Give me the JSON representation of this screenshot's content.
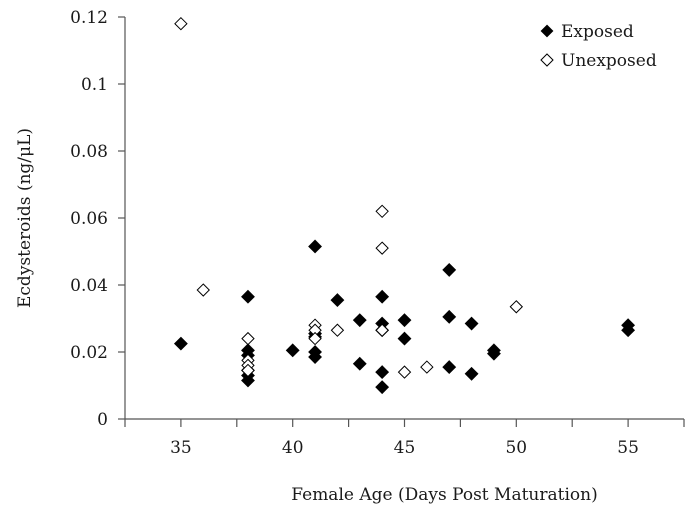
{
  "chart_data": {
    "type": "scatter",
    "title": "",
    "xlabel": "Female Age (Days Post Maturation)",
    "ylabel": "Ecdysteroids (ng/μL)",
    "xlim": [
      32.5,
      57.5
    ],
    "ylim": [
      0,
      0.12
    ],
    "xticks": [
      35,
      40,
      45,
      50,
      55
    ],
    "xtick_labels": [
      "35",
      "40",
      "45",
      "50",
      "55"
    ],
    "yticks": [
      0,
      0.02,
      0.04,
      0.06,
      0.08,
      0.1,
      0.12
    ],
    "ytick_labels": [
      "0",
      "0.02",
      "0.04",
      "0.06",
      "0.08",
      "0.1",
      "0.12"
    ],
    "grid": false,
    "legend_position": "top-right",
    "series": [
      {
        "name": "Exposed",
        "marker": "filled-diamond",
        "color": "#000000",
        "points": [
          [
            35,
            0.0225
          ],
          [
            38,
            0.0365
          ],
          [
            38,
            0.0205
          ],
          [
            38,
            0.019
          ],
          [
            38,
            0.0145
          ],
          [
            38,
            0.013
          ],
          [
            38,
            0.0115
          ],
          [
            40,
            0.0205
          ],
          [
            41,
            0.0515
          ],
          [
            41,
            0.0255
          ],
          [
            41,
            0.0245
          ],
          [
            41,
            0.02
          ],
          [
            41,
            0.0185
          ],
          [
            42,
            0.0355
          ],
          [
            43,
            0.0295
          ],
          [
            43,
            0.0165
          ],
          [
            44,
            0.0365
          ],
          [
            44,
            0.0285
          ],
          [
            44,
            0.0265
          ],
          [
            44,
            0.014
          ],
          [
            44,
            0.0095
          ],
          [
            45,
            0.0295
          ],
          [
            45,
            0.024
          ],
          [
            47,
            0.0445
          ],
          [
            47,
            0.0305
          ],
          [
            47,
            0.0155
          ],
          [
            48,
            0.0285
          ],
          [
            48,
            0.0135
          ],
          [
            49,
            0.0205
          ],
          [
            49,
            0.0195
          ],
          [
            55,
            0.028
          ],
          [
            55,
            0.0265
          ]
        ]
      },
      {
        "name": "Unexposed",
        "marker": "open-diamond",
        "color": "#000000",
        "points": [
          [
            35,
            0.118
          ],
          [
            36,
            0.0385
          ],
          [
            38,
            0.024
          ],
          [
            38,
            0.0175
          ],
          [
            38,
            0.016
          ],
          [
            38,
            0.0145
          ],
          [
            41,
            0.028
          ],
          [
            41,
            0.0265
          ],
          [
            41,
            0.024
          ],
          [
            42,
            0.0265
          ],
          [
            44,
            0.062
          ],
          [
            44,
            0.051
          ],
          [
            44,
            0.0265
          ],
          [
            45,
            0.014
          ],
          [
            46,
            0.0155
          ],
          [
            50,
            0.0335
          ]
        ]
      }
    ]
  }
}
